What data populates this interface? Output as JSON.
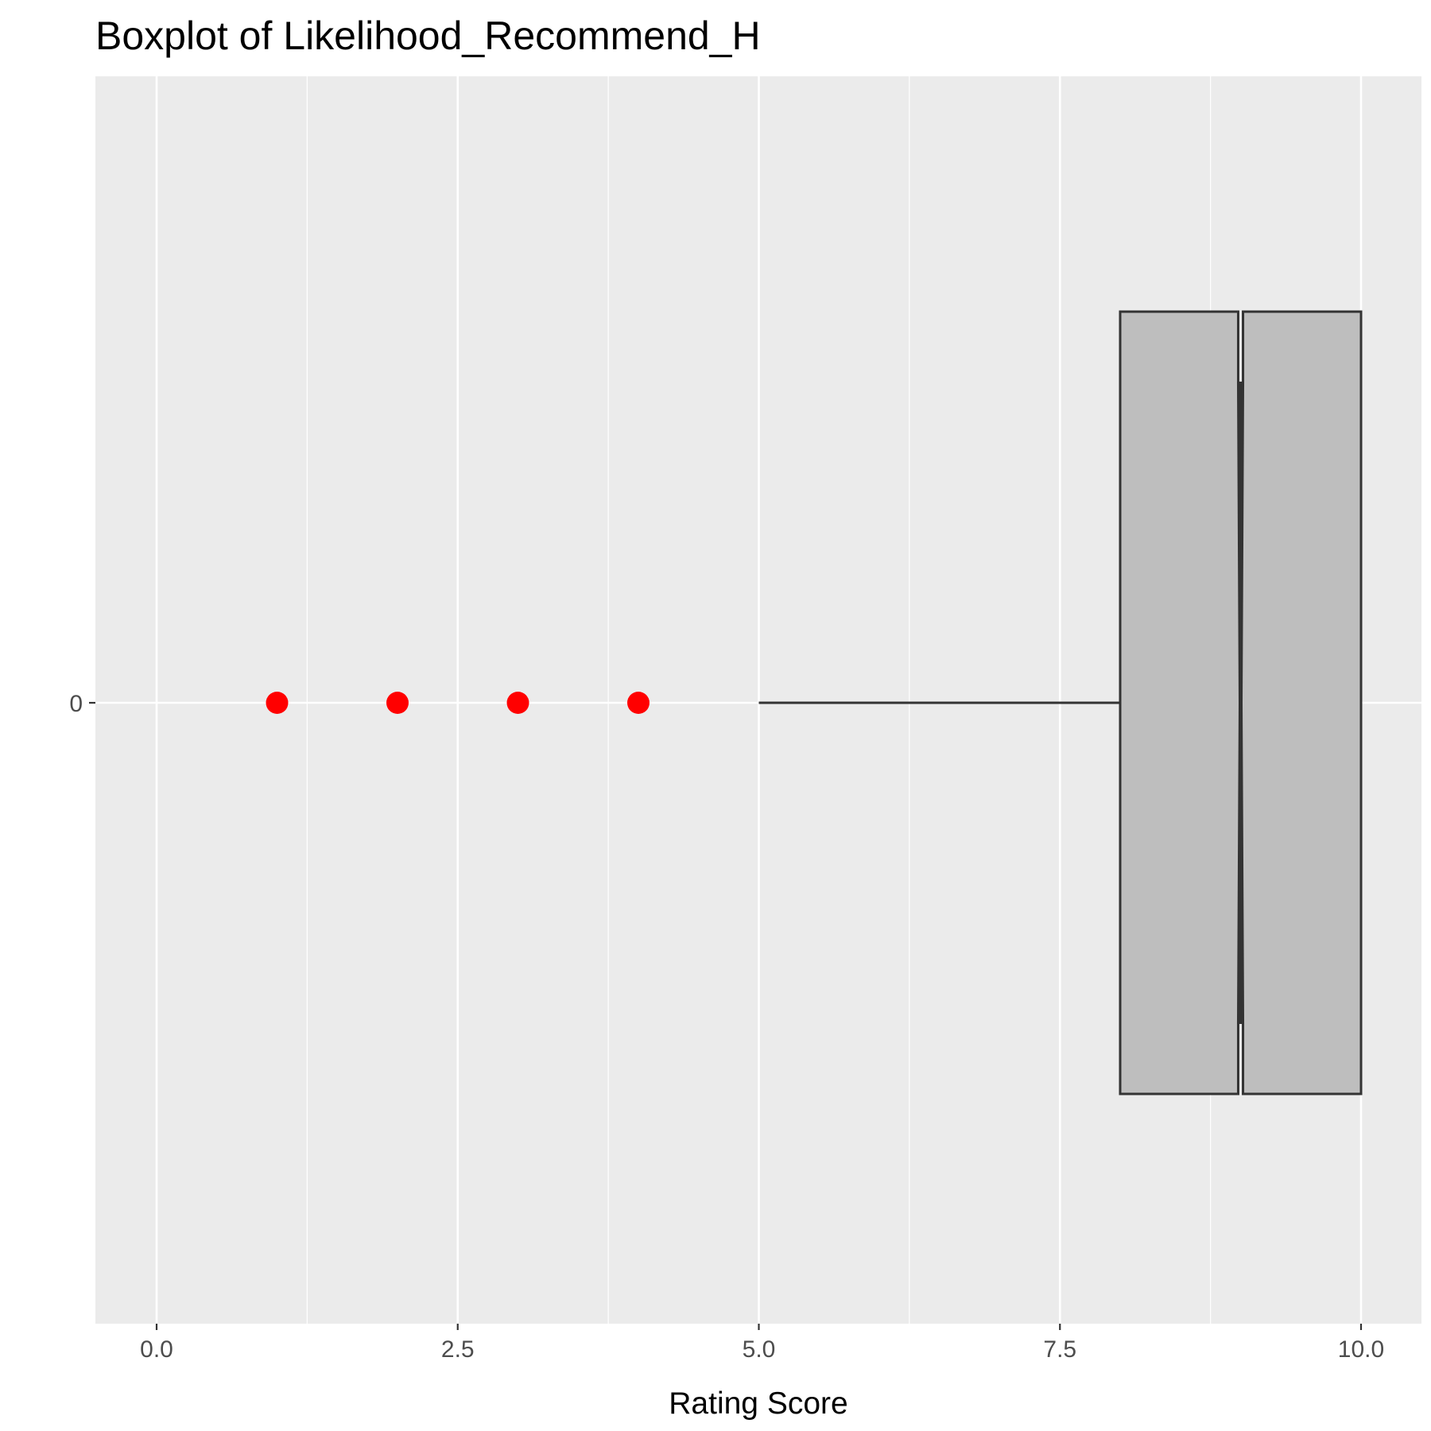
{
  "chart_data": {
    "type": "boxplot",
    "title": "Boxplot of Likelihood_Recommend_H",
    "xlabel": "Rating Score",
    "ylabel": "",
    "xlim": [
      -0.5,
      10.5
    ],
    "x_ticks": [
      {
        "value": 0,
        "label": "0.0"
      },
      {
        "value": 2.5,
        "label": "2.5"
      },
      {
        "value": 5,
        "label": "5.0"
      },
      {
        "value": 7.5,
        "label": "7.5"
      },
      {
        "value": 10,
        "label": "10.0"
      }
    ],
    "y_ticks": [
      {
        "value": 0,
        "label": "0"
      }
    ],
    "box": {
      "group": "0",
      "whisker_low": 5,
      "q1": 8,
      "median": 9,
      "q3": 10,
      "whisker_high": 10,
      "notch_low": 8.98,
      "notch_high": 9.02
    },
    "outliers": [
      1,
      2,
      3,
      4
    ],
    "grid": true,
    "colors": {
      "panel_background": "#ebebeb",
      "grid": "#ffffff",
      "box_fill": "#bebebe",
      "box_line": "#333333",
      "outlier": "#ff0000",
      "tick": "#333333"
    }
  }
}
